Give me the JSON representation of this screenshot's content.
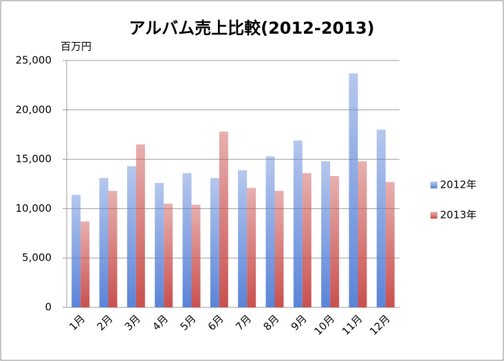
{
  "chart_data": {
    "type": "bar",
    "title": "アルバム売上比較(2012-2013)",
    "y_axis_label": "百万円",
    "categories": [
      "1月",
      "2月",
      "3月",
      "4月",
      "5月",
      "6月",
      "7月",
      "8月",
      "9月",
      "10月",
      "11月",
      "12月"
    ],
    "series": [
      {
        "name": "2012年",
        "color": "#5b84d8",
        "values": [
          11400,
          13100,
          14300,
          12600,
          13600,
          13100,
          13900,
          15300,
          16900,
          14800,
          23700,
          18000
        ]
      },
      {
        "name": "2013年",
        "color": "#c9504e",
        "values": [
          8700,
          11800,
          16500,
          10500,
          10400,
          17800,
          12100,
          11800,
          13600,
          13300,
          14800,
          12700
        ]
      }
    ],
    "ylim": [
      0,
      25000
    ],
    "yticks": [
      0,
      {
        "value": 5000,
        "label": "5,000"
      },
      {
        "value": 10000,
        "label": "10,000"
      },
      {
        "value": 15000,
        "label": "15,000"
      },
      {
        "value": 20000,
        "label": "20,000"
      },
      {
        "value": 25000,
        "label": "25,000"
      }
    ],
    "grid": true,
    "legend": "right"
  }
}
